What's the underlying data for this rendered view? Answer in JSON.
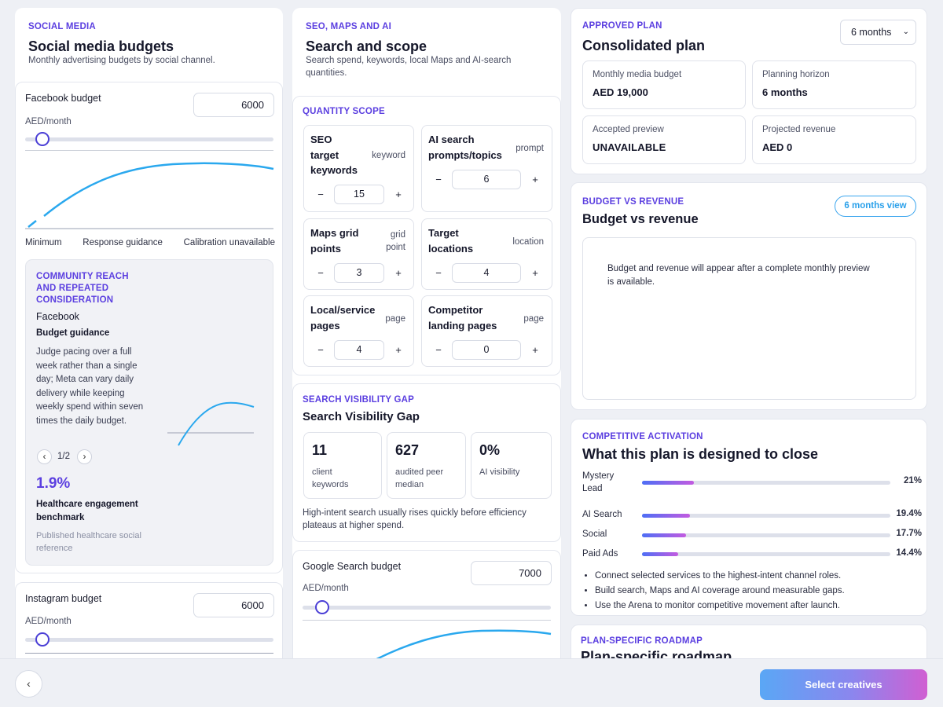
{
  "social": {
    "eyebrow": "SOCIAL MEDIA",
    "title": "Social media budgets",
    "subtitle": "Monthly advertising budgets by social channel.",
    "facebook": {
      "label": "Facebook budget",
      "value": "6000",
      "unit": "AED/month",
      "slider_fraction": 0.07,
      "legend": [
        "Minimum",
        "Response guidance",
        "Calibration unavailable"
      ]
    },
    "guidance": {
      "eyebrow": "COMMUNITY REACH AND REPEATED CONSIDERATION",
      "channel": "Facebook",
      "heading": "Budget guidance",
      "text": "Judge pacing over a full week rather than a single day; Meta can vary daily delivery while keeping weekly spend within seven times the daily budget.",
      "pager": "1/2",
      "benchmark_value": "1.9%",
      "benchmark_label": "Healthcare engagement benchmark",
      "benchmark_source": "Published healthcare social reference"
    },
    "instagram": {
      "label": "Instagram budget",
      "value": "6000",
      "unit": "AED/month",
      "slider_fraction": 0.07
    }
  },
  "seo": {
    "eyebrow": "SEO, MAPS AND AI",
    "title": "Search and scope",
    "subtitle": "Search spend, keywords, local Maps and AI-search quantities.",
    "scope_eyebrow": "QUANTITY SCOPE",
    "quantities": [
      {
        "name": "SEO target keywords",
        "unit": "keyword",
        "value": "15"
      },
      {
        "name": "AI search prompts/topics",
        "unit": "prompt",
        "value": "6"
      },
      {
        "name": "Maps grid points",
        "unit": "grid point",
        "value": "3"
      },
      {
        "name": "Target locations",
        "unit": "location",
        "value": "4"
      },
      {
        "name": "Local/service pages",
        "unit": "page",
        "value": "4"
      },
      {
        "name": "Competitor landing pages",
        "unit": "page",
        "value": "0"
      }
    ],
    "minus": "−",
    "plus": "+",
    "gap": {
      "eyebrow": "SEARCH VISIBILITY GAP",
      "title": "Search Visibility Gap",
      "stats": [
        {
          "value": "11",
          "label": "client keywords"
        },
        {
          "value": "627",
          "label": "audited peer median"
        },
        {
          "value": "0%",
          "label": "AI visibility"
        }
      ],
      "note": "High-intent search usually rises quickly before efficiency plateaus at higher spend."
    },
    "google": {
      "label": "Google Search budget",
      "value": "7000",
      "unit": "AED/month",
      "slider_fraction": 0.08
    }
  },
  "plan": {
    "eyebrow": "APPROVED PLAN",
    "title": "Consolidated plan",
    "horizon_select": "6 months",
    "metrics": [
      {
        "label": "Monthly media budget",
        "value": "AED 19,000"
      },
      {
        "label": "Planning horizon",
        "value": "6 months"
      },
      {
        "label": "Accepted preview",
        "value": "UNAVAILABLE"
      },
      {
        "label": "Projected revenue",
        "value": "AED 0"
      }
    ]
  },
  "bvr": {
    "eyebrow": "BUDGET VS REVENUE",
    "title": "Budget vs revenue",
    "view_pill": "6 months view",
    "empty_text": "Budget and revenue will appear after a complete monthly preview is available."
  },
  "competitive": {
    "eyebrow": "COMPETITIVE ACTIVATION",
    "title": "What this plan is designed to close",
    "bars": [
      {
        "label": "Mystery Lead",
        "pct": "21%",
        "value": 21
      },
      {
        "label": "AI Search",
        "pct": "19.4%",
        "value": 19.4
      },
      {
        "label": "Social",
        "pct": "17.7%",
        "value": 17.7
      },
      {
        "label": "Paid Ads",
        "pct": "14.4%",
        "value": 14.4
      }
    ],
    "bullets": [
      "Connect selected services to the highest-intent channel roles.",
      "Build search, Maps and AI coverage around measurable gaps.",
      "Use the Arena to monitor competitive movement after launch."
    ]
  },
  "roadmap": {
    "eyebrow": "PLAN-SPECIFIC ROADMAP",
    "title": "Plan-specific roadmap"
  },
  "footer": {
    "back": "‹",
    "cta": "Select creatives"
  },
  "colors": {
    "accent": "#5b3fe0",
    "curve": "#2aa8ee",
    "cta_start": "#5aa7f5",
    "cta_end": "#d05fd2"
  }
}
